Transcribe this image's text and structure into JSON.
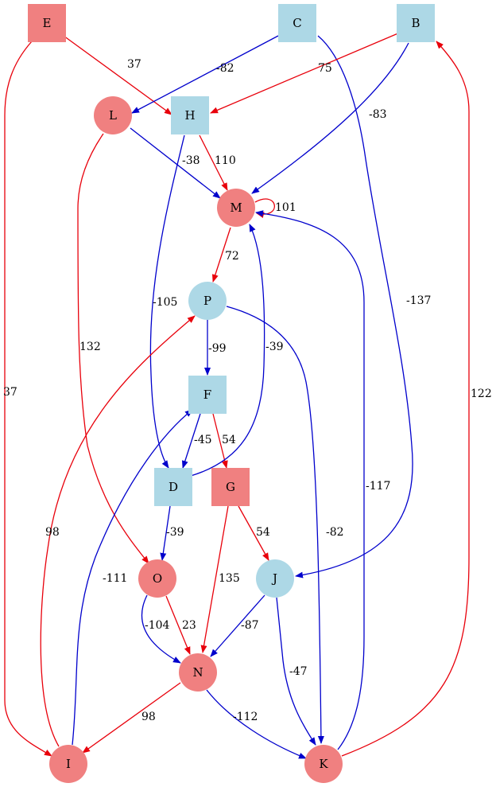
{
  "colors": {
    "red": "#e8000b",
    "blue": "#0000cc",
    "node_red": "#f08080",
    "node_blue": "#add8e6",
    "text": "#000000"
  },
  "nodes": [
    {
      "id": "E",
      "label": "E",
      "shape": "square",
      "color": "red"
    },
    {
      "id": "C",
      "label": "C",
      "shape": "square",
      "color": "blue"
    },
    {
      "id": "B",
      "label": "B",
      "shape": "square",
      "color": "blue"
    },
    {
      "id": "L",
      "label": "L",
      "shape": "circle",
      "color": "red"
    },
    {
      "id": "H",
      "label": "H",
      "shape": "square",
      "color": "blue"
    },
    {
      "id": "M",
      "label": "M",
      "shape": "circle",
      "color": "red"
    },
    {
      "id": "P",
      "label": "P",
      "shape": "circle",
      "color": "blue"
    },
    {
      "id": "F",
      "label": "F",
      "shape": "square",
      "color": "blue"
    },
    {
      "id": "D",
      "label": "D",
      "shape": "square",
      "color": "blue"
    },
    {
      "id": "G",
      "label": "G",
      "shape": "square",
      "color": "red"
    },
    {
      "id": "O",
      "label": "O",
      "shape": "circle",
      "color": "red"
    },
    {
      "id": "J",
      "label": "J",
      "shape": "circle",
      "color": "blue"
    },
    {
      "id": "N",
      "label": "N",
      "shape": "circle",
      "color": "red"
    },
    {
      "id": "I",
      "label": "I",
      "shape": "circle",
      "color": "red"
    },
    {
      "id": "K",
      "label": "K",
      "shape": "circle",
      "color": "red"
    }
  ],
  "edges": [
    {
      "id": "E-H",
      "from": "E",
      "to": "H",
      "weight": "37",
      "color": "red"
    },
    {
      "id": "E-I",
      "from": "E",
      "to": "I",
      "weight": "37",
      "color": "red"
    },
    {
      "id": "C-L",
      "from": "C",
      "to": "L",
      "weight": "-82",
      "color": "blue"
    },
    {
      "id": "C-J",
      "from": "C",
      "to": "J",
      "weight": "-137",
      "color": "blue"
    },
    {
      "id": "B-H",
      "from": "B",
      "to": "H",
      "weight": "75",
      "color": "red"
    },
    {
      "id": "B-M",
      "from": "B",
      "to": "M",
      "weight": "-83",
      "color": "blue"
    },
    {
      "id": "L-M",
      "from": "L",
      "to": "M",
      "weight": "-38",
      "color": "blue"
    },
    {
      "id": "L-O",
      "from": "L",
      "to": "O",
      "weight": "132",
      "color": "red"
    },
    {
      "id": "H-M",
      "from": "H",
      "to": "M",
      "weight": "110",
      "color": "red"
    },
    {
      "id": "H-D",
      "from": "H",
      "to": "D",
      "weight": "-105",
      "color": "blue"
    },
    {
      "id": "M-M",
      "from": "M",
      "to": "M",
      "weight": "101",
      "color": "red"
    },
    {
      "id": "M-P",
      "from": "M",
      "to": "P",
      "weight": "72",
      "color": "red"
    },
    {
      "id": "P-F",
      "from": "P",
      "to": "F",
      "weight": "-99",
      "color": "blue"
    },
    {
      "id": "P-K",
      "from": "P",
      "to": "K",
      "weight": "-82",
      "color": "blue"
    },
    {
      "id": "F-D",
      "from": "F",
      "to": "D",
      "weight": "-45",
      "color": "blue"
    },
    {
      "id": "F-G",
      "from": "F",
      "to": "G",
      "weight": "54",
      "color": "red"
    },
    {
      "id": "D-M",
      "from": "D",
      "to": "M",
      "weight": "-39",
      "color": "blue"
    },
    {
      "id": "D-O",
      "from": "D",
      "to": "O",
      "weight": "-39",
      "color": "blue"
    },
    {
      "id": "G-J",
      "from": "G",
      "to": "J",
      "weight": "54",
      "color": "red"
    },
    {
      "id": "G-N",
      "from": "G",
      "to": "N",
      "weight": "135",
      "color": "red"
    },
    {
      "id": "O-N-a",
      "from": "O",
      "to": "N",
      "weight": "-104",
      "color": "blue"
    },
    {
      "id": "O-N-b",
      "from": "O",
      "to": "N",
      "weight": "23",
      "color": "red"
    },
    {
      "id": "J-N",
      "from": "J",
      "to": "N",
      "weight": "-87",
      "color": "blue"
    },
    {
      "id": "J-K",
      "from": "J",
      "to": "K",
      "weight": "-47",
      "color": "blue"
    },
    {
      "id": "N-I",
      "from": "N",
      "to": "I",
      "weight": "98",
      "color": "red"
    },
    {
      "id": "N-K",
      "from": "N",
      "to": "K",
      "weight": "-112",
      "color": "blue"
    },
    {
      "id": "I-P",
      "from": "I",
      "to": "P",
      "weight": "98",
      "color": "red"
    },
    {
      "id": "I-F",
      "from": "I",
      "to": "F",
      "weight": "-111",
      "color": "blue"
    },
    {
      "id": "K-M",
      "from": "K",
      "to": "M",
      "weight": "-117",
      "color": "blue"
    },
    {
      "id": "K-B",
      "from": "K",
      "to": "B",
      "weight": "122",
      "color": "red"
    }
  ]
}
